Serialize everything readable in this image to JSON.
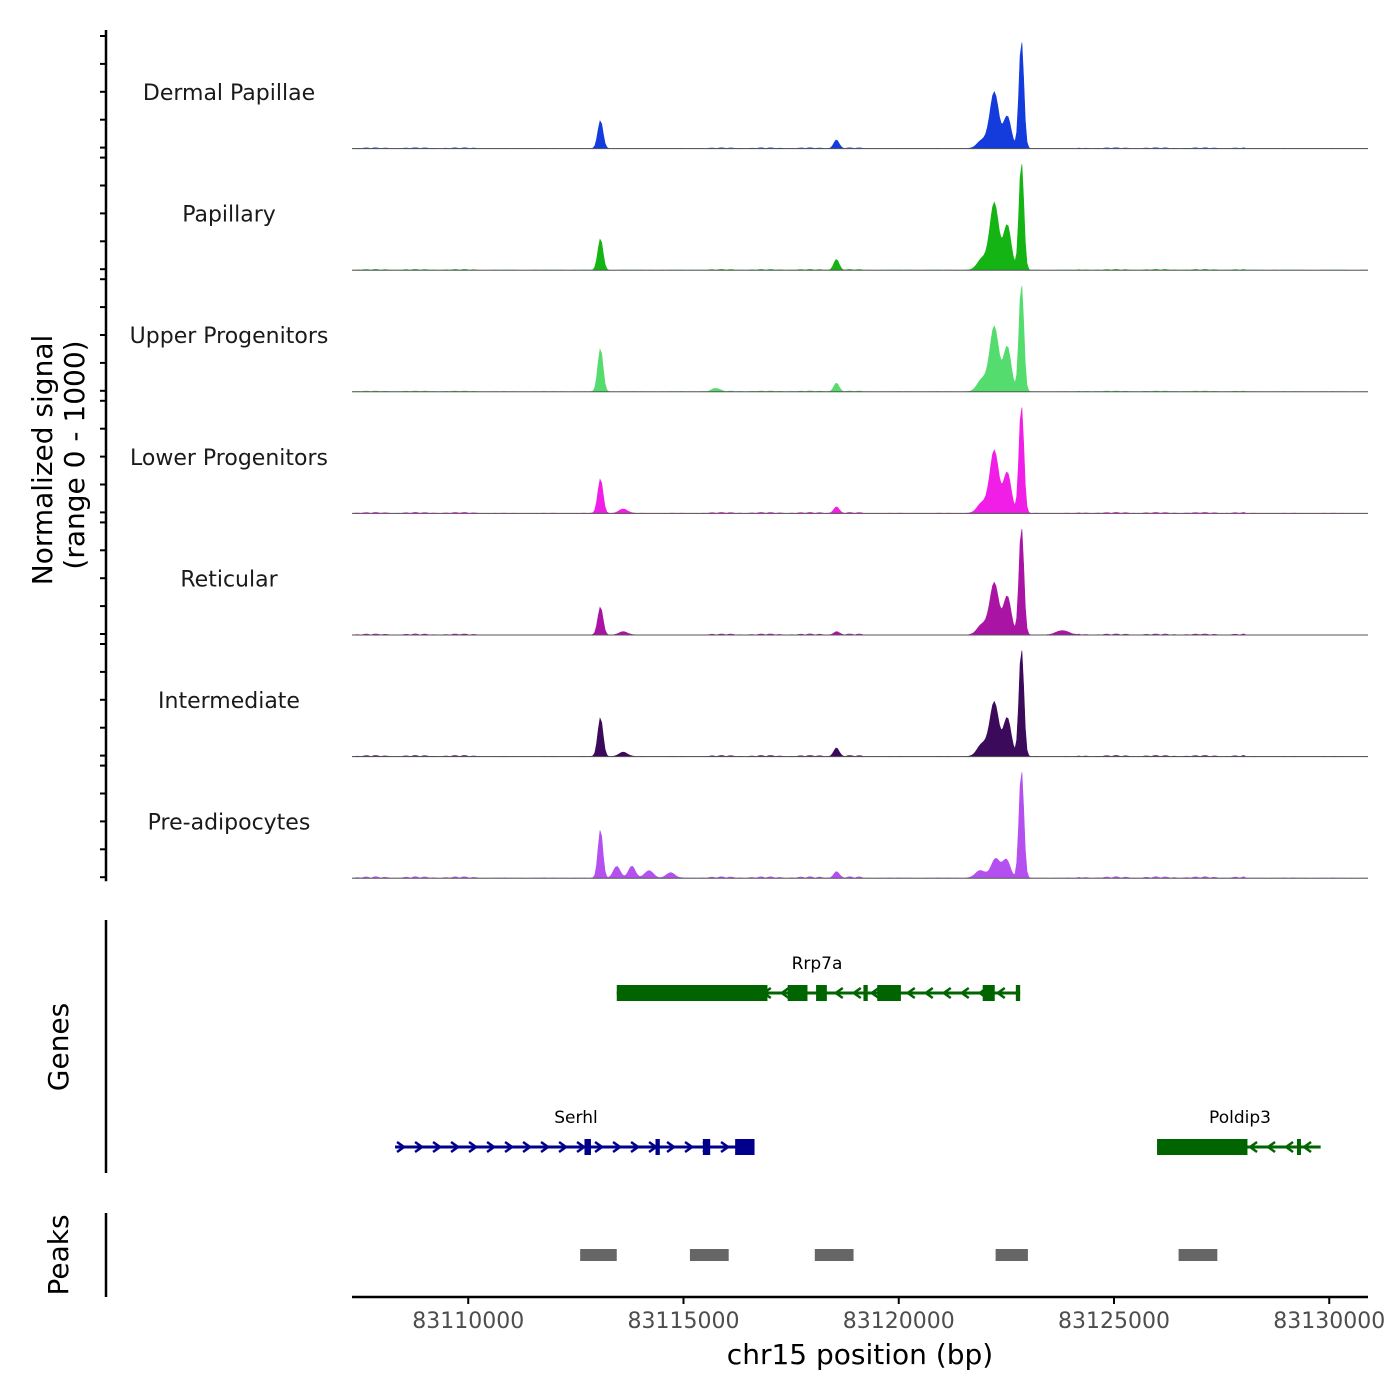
{
  "chart_data": {
    "type": "area",
    "title": "",
    "xlabel": "chr15 position (bp)",
    "ylabel": "Normalized signal\n(range 0 - 1000)",
    "xlim": [
      83107300,
      83130900
    ],
    "ylim": [
      0,
      1000
    ],
    "x_ticks": [
      83110000,
      83115000,
      83120000,
      83125000,
      83130000
    ],
    "x_tick_labels": [
      "83110000",
      "83115000",
      "83120000",
      "83125000",
      "83130000"
    ],
    "series": [
      {
        "name": "Dermal Papillae",
        "color": "#143cdc",
        "baseline": 8,
        "peaks": [
          [
            83113070,
            260,
            60
          ],
          [
            83118550,
            80,
            60
          ],
          [
            83121950,
            80,
            120
          ],
          [
            83122220,
            520,
            100
          ],
          [
            83122520,
            300,
            90
          ],
          [
            83122850,
            1000,
            55
          ]
        ]
      },
      {
        "name": "Papillary",
        "color": "#14b414",
        "baseline": 8,
        "peaks": [
          [
            83113070,
            290,
            60
          ],
          [
            83118550,
            100,
            60
          ],
          [
            83121950,
            110,
            120
          ],
          [
            83122220,
            620,
            100
          ],
          [
            83122520,
            420,
            90
          ],
          [
            83122850,
            1000,
            55
          ]
        ]
      },
      {
        "name": "Upper Progenitors",
        "color": "#55dc6e",
        "baseline": 8,
        "peaks": [
          [
            83113070,
            400,
            60
          ],
          [
            83115750,
            30,
            80
          ],
          [
            83118550,
            80,
            60
          ],
          [
            83121950,
            120,
            120
          ],
          [
            83122220,
            600,
            100
          ],
          [
            83122520,
            420,
            90
          ],
          [
            83122850,
            1000,
            55
          ]
        ]
      },
      {
        "name": "Lower Progenitors",
        "color": "#f01ee6",
        "baseline": 10,
        "peaks": [
          [
            83113070,
            320,
            60
          ],
          [
            83113600,
            40,
            100
          ],
          [
            83118550,
            60,
            60
          ],
          [
            83121950,
            100,
            120
          ],
          [
            83122220,
            580,
            100
          ],
          [
            83122520,
            380,
            90
          ],
          [
            83122850,
            1000,
            55
          ]
        ]
      },
      {
        "name": "Reticular",
        "color": "#aa14a5",
        "baseline": 10,
        "peaks": [
          [
            83113070,
            260,
            60
          ],
          [
            83113600,
            30,
            100
          ],
          [
            83118550,
            30,
            60
          ],
          [
            83121950,
            100,
            120
          ],
          [
            83122220,
            480,
            100
          ],
          [
            83122520,
            360,
            90
          ],
          [
            83122850,
            1000,
            55
          ],
          [
            83123800,
            40,
            150
          ]
        ]
      },
      {
        "name": "Intermediate",
        "color": "#3c0a5a",
        "baseline": 10,
        "peaks": [
          [
            83113070,
            360,
            60
          ],
          [
            83113600,
            40,
            100
          ],
          [
            83118550,
            80,
            60
          ],
          [
            83121950,
            120,
            120
          ],
          [
            83122220,
            500,
            100
          ],
          [
            83122520,
            360,
            90
          ],
          [
            83122850,
            1000,
            55
          ]
        ]
      },
      {
        "name": "Pre-adipocytes",
        "color": "#b450f0",
        "baseline": 14,
        "peaks": [
          [
            83113070,
            450,
            55
          ],
          [
            83113450,
            110,
            80
          ],
          [
            83113800,
            110,
            80
          ],
          [
            83114200,
            70,
            100
          ],
          [
            83114700,
            50,
            100
          ],
          [
            83118550,
            60,
            60
          ],
          [
            83121900,
            70,
            120
          ],
          [
            83122250,
            180,
            100
          ],
          [
            83122500,
            170,
            90
          ],
          [
            83122850,
            1000,
            55
          ]
        ]
      }
    ],
    "genes": [
      {
        "name": "Rrp7a",
        "strand": "-",
        "color": "#006400",
        "start": 83113450,
        "end": 83122820,
        "exons": [
          [
            83113450,
            83116950
          ],
          [
            83117420,
            83117880
          ],
          [
            83118080,
            83118330
          ],
          [
            83119180,
            83119280
          ],
          [
            83119500,
            83120050
          ],
          [
            83121950,
            83122230
          ],
          [
            83122720,
            83122820
          ]
        ]
      },
      {
        "name": "Serhl",
        "strand": "+",
        "color": "#00008c",
        "start": 83108300,
        "end": 83116650,
        "exons": [
          [
            83112700,
            83112850
          ],
          [
            83114350,
            83114450
          ],
          [
            83115450,
            83115620
          ],
          [
            83116200,
            83116650
          ]
        ]
      },
      {
        "name": "Poldip3",
        "strand": "-",
        "color": "#006400",
        "start": 83126000,
        "end": 83129800,
        "exons": [
          [
            83126000,
            83128100
          ],
          [
            83129250,
            83129320
          ]
        ]
      }
    ],
    "peaks": [
      [
        83112600,
        83113450
      ],
      [
        83115150,
        83116050
      ],
      [
        83118050,
        83118950
      ],
      [
        83122250,
        83123000
      ],
      [
        83126500,
        83127400
      ]
    ],
    "panel_titles": {
      "genes": "Genes",
      "peaks": "Peaks"
    }
  }
}
